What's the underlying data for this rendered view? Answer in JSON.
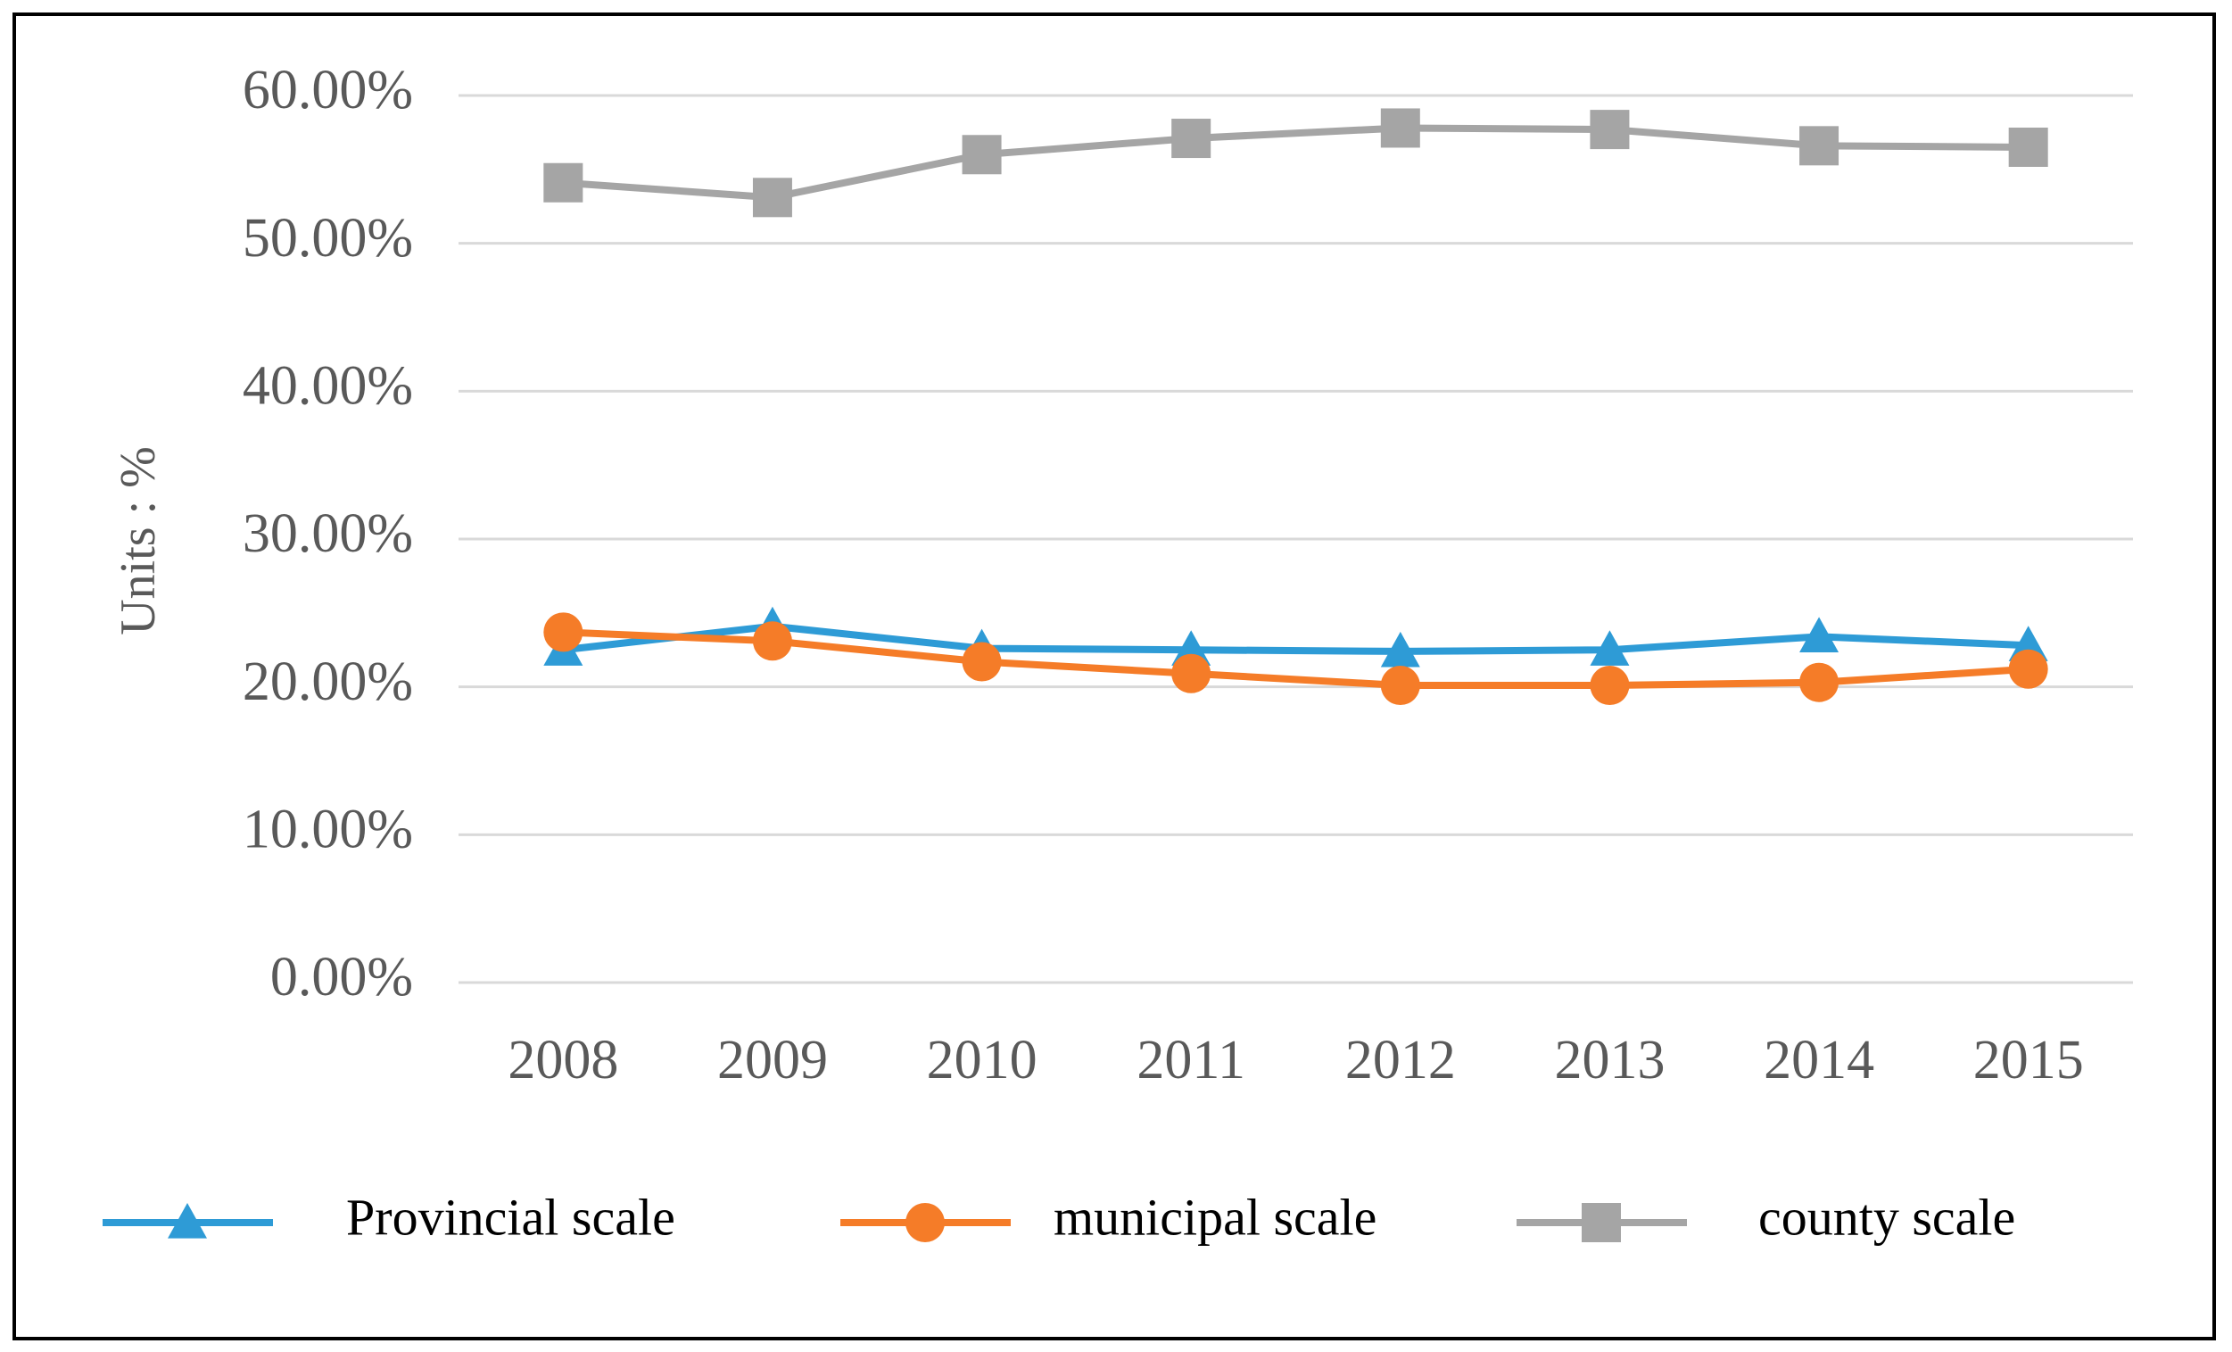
{
  "chart_data": {
    "type": "line",
    "y_label": "Units : %",
    "categories": [
      "2008",
      "2009",
      "2010",
      "2011",
      "2012",
      "2013",
      "2014",
      "2015"
    ],
    "series": [
      {
        "name": "Provincial scale",
        "color": "#2e9bd6",
        "marker": "triangle",
        "values": [
          22.5,
          24.1,
          22.6,
          22.5,
          22.4,
          22.5,
          23.4,
          22.8
        ]
      },
      {
        "name": "municipal scale",
        "color": "#f57c28",
        "marker": "circle",
        "values": [
          23.7,
          23.1,
          21.7,
          20.9,
          20.1,
          20.1,
          20.3,
          21.2
        ]
      },
      {
        "name": "county scale",
        "color": "#a5a5a5",
        "marker": "square",
        "values": [
          54.1,
          53.1,
          56.0,
          57.1,
          57.8,
          57.7,
          56.6,
          56.5
        ]
      }
    ],
    "ylim": [
      0,
      60
    ],
    "yticks": [
      {
        "value": 0,
        "label": "0.00%"
      },
      {
        "value": 10,
        "label": "10.00%"
      },
      {
        "value": 20,
        "label": "20.00%"
      },
      {
        "value": 30,
        "label": "30.00%"
      },
      {
        "value": 40,
        "label": "40.00%"
      },
      {
        "value": 50,
        "label": "50.00%"
      },
      {
        "value": 60,
        "label": "60.00%"
      }
    ],
    "grid": true,
    "legend": "bottom"
  }
}
